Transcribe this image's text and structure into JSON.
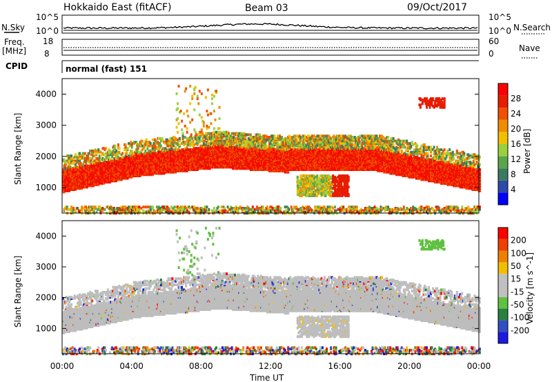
{
  "header": {
    "radar": "Hokkaido East (fitACF)",
    "beam": "Beam 03",
    "date": "09/Oct/2017"
  },
  "strip": {
    "nsky_label": "N.Sky",
    "nsky_hi": "10^5",
    "nsky_lo": "10^0",
    "nsearch_label": "N.Search",
    "nsearch_hi": "10^5",
    "nsearch_lo": "10^0",
    "freq_label_1": "Freq.",
    "freq_label_2": "[MHz]",
    "freq_hi": "18",
    "freq_lo": "8",
    "nave_label": "Nave",
    "nave_hi": "60",
    "nave_lo": "0",
    "cpid_label": "CPID",
    "cpid_text": "normal (fast) 151"
  },
  "colors": {
    "power_scale": [
      "#0000ff",
      "#2b4aa8",
      "#3a7a60",
      "#5aa54a",
      "#9bd03c",
      "#f0c000",
      "#f08c00",
      "#f05000",
      "#e81c00",
      "#ff0000"
    ],
    "velocity_scale": [
      "#1a1ae0",
      "#3050c0",
      "#2a8040",
      "#60c040",
      "#c0c0c0",
      "#c0c0c0",
      "#f0c000",
      "#f08000",
      "#f04000",
      "#ff0000"
    ],
    "ground_scatter": "#bdbdbd"
  },
  "chart_data": [
    {
      "type": "heatmap",
      "quantity": "power",
      "xlabel": "Time UT",
      "ylabel": "Slant Range [km]",
      "x_ticks": [
        "00:00",
        "04:00",
        "08:00",
        "12:00",
        "16:00",
        "20:00",
        "00:00"
      ],
      "y_ticks": [
        "1000",
        "2000",
        "3000",
        "4000"
      ],
      "ylim": [
        180,
        4500
      ],
      "xlim_hours": [
        0,
        24
      ],
      "colorbar_label": "Power [dB]",
      "colorbar_ticks": [
        "4",
        "8",
        "12",
        "16",
        "20",
        "24",
        "28"
      ],
      "bands": [
        {
          "t0": 0,
          "t1": 24,
          "r0": 900,
          "r1": 1900,
          "level": "high"
        },
        {
          "t0": 4,
          "t1": 9,
          "r0": 2000,
          "r1": 2700,
          "level": "mid"
        },
        {
          "t0": 9,
          "t1": 20,
          "r0": 1700,
          "r1": 2400,
          "level": "mid"
        },
        {
          "t0": 13.5,
          "t1": 16.5,
          "r0": 800,
          "r1": 1400,
          "level": "low"
        },
        {
          "t0": 21,
          "t1": 22,
          "r0": 3600,
          "r1": 3900,
          "level": "high"
        }
      ]
    },
    {
      "type": "heatmap",
      "quantity": "velocity",
      "xlabel": "Time UT",
      "ylabel": "Slant Range [km]",
      "x_ticks": [
        "00:00",
        "04:00",
        "08:00",
        "12:00",
        "16:00",
        "20:00",
        "00:00"
      ],
      "y_ticks": [
        "1000",
        "2000",
        "3000",
        "4000"
      ],
      "ylim": [
        180,
        4500
      ],
      "xlim_hours": [
        0,
        24
      ],
      "colorbar_label": "Velocity [m s^-1]",
      "colorbar_ticks": [
        "200",
        "100",
        "50",
        "15",
        "-15",
        "-50",
        "-100",
        "-200"
      ]
    }
  ]
}
